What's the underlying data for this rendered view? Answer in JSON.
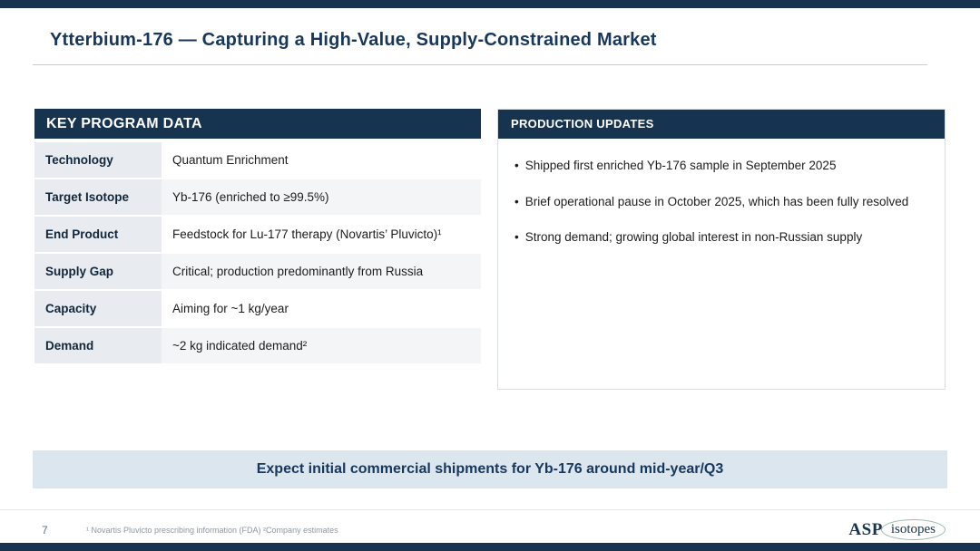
{
  "slide": {
    "title": "Ytterbium-176 — Capturing a High-Value, Supply-Constrained Market"
  },
  "key_program": {
    "header": "KEY PROGRAM DATA",
    "rows": [
      {
        "label": "Technology",
        "value": "Quantum Enrichment"
      },
      {
        "label": "Target Isotope",
        "value": "Yb-176 (enriched to ≥99.5%)"
      },
      {
        "label": "End Product",
        "value": "Feedstock for Lu-177 therapy (Novartis’ Pluvicto)¹"
      },
      {
        "label": "Supply Gap",
        "value": "Critical; production predominantly from Russia"
      },
      {
        "label": "Capacity",
        "value": "Aiming for ~1 kg/year"
      },
      {
        "label": "Demand",
        "value": "~2 kg indicated demand²"
      }
    ]
  },
  "production_updates": {
    "header": "PRODUCTION UPDATES",
    "bullet_glyph": "•",
    "bullets": [
      "Shipped first enriched Yb-176 sample in September 2025",
      "Brief operational pause in October 2025, which has been fully resolved",
      "Strong demand; growing global interest in non-Russian supply"
    ]
  },
  "banner": {
    "text": "Expect initial commercial shipments for Yb-176 around mid-year/Q3"
  },
  "footer": {
    "page_number": "7",
    "footnotes": "¹ Novartis Pluvicto prescribing information (FDA)   ²Company estimates",
    "logo_asp": "ASP",
    "logo_isotopes": "isotopes"
  },
  "colors": {
    "navy": "#16344f",
    "banner_bg": "#dce6ee",
    "label_cell_bg": "#e8ecf0"
  }
}
